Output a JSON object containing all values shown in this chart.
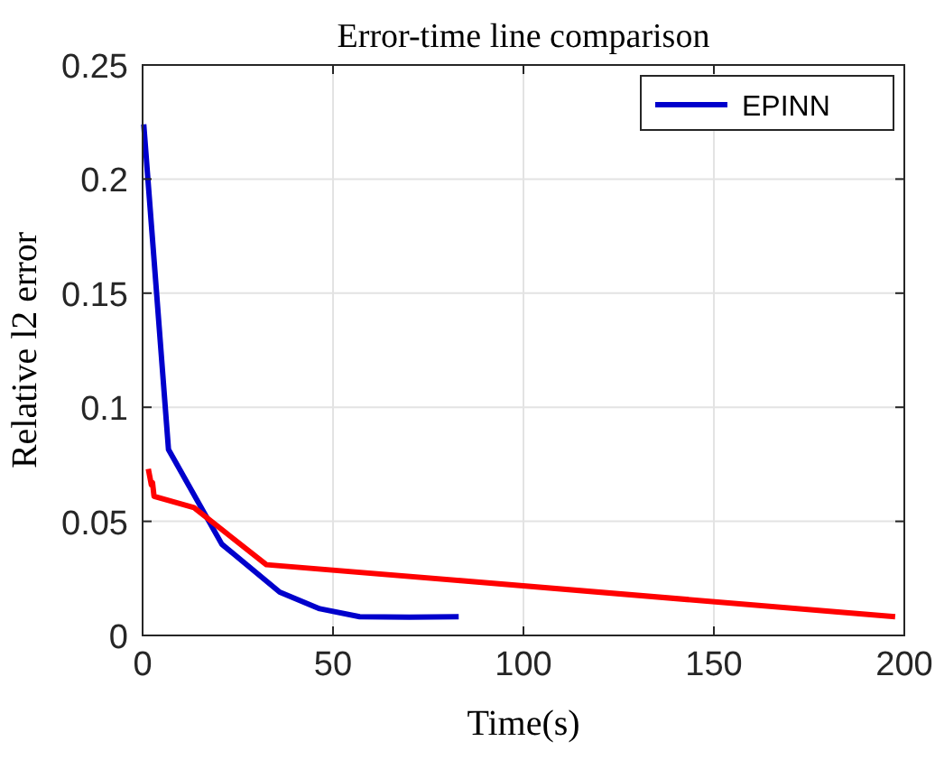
{
  "chart_data": {
    "type": "line",
    "title": "Error-time line comparison",
    "xlabel": "Time(s)",
    "ylabel": "Relative l2 error",
    "xlim": [
      0,
      200
    ],
    "xticks": [
      0,
      50,
      100,
      150,
      200
    ],
    "ylim": [
      0,
      0.25
    ],
    "yticks": [
      0,
      0.05,
      0.1,
      0.15,
      0.2,
      0.25
    ],
    "grid": true,
    "legend": "top right",
    "marker": "none",
    "line_style": "solid",
    "series": [
      {
        "name": "EPINN",
        "color": "#0000cc",
        "x": [
          0.3,
          6.8,
          20.8,
          36,
          46.5,
          57,
          70,
          83
        ],
        "values": [
          0.224,
          0.0815,
          0.04,
          0.019,
          0.0117,
          0.0082,
          0.008,
          0.0082
        ]
      },
      {
        "color": "#ff0000",
        "x": [
          1.5,
          2.3,
          2.6,
          3,
          13.5,
          32.5,
          83.5,
          197.6
        ],
        "values": [
          0.073,
          0.066,
          0.067,
          0.061,
          0.056,
          0.031,
          0.024,
          0.0082
        ]
      }
    ]
  }
}
